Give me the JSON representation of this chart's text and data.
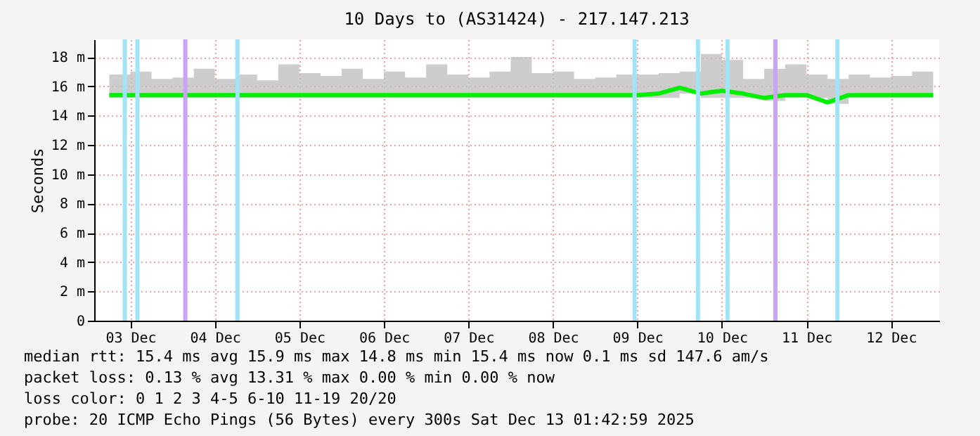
{
  "chart_data": {
    "type": "line",
    "title": "10 Days to (AS31424) - 217.147.213",
    "ylabel": "Seconds",
    "x": [
      "2025-12-03T06:00",
      "2025-12-03T12:00",
      "2025-12-03T18:00",
      "2025-12-04T00:00",
      "2025-12-04T06:00",
      "2025-12-04T12:00",
      "2025-12-04T18:00",
      "2025-12-05T00:00",
      "2025-12-05T06:00",
      "2025-12-05T12:00",
      "2025-12-05T18:00",
      "2025-12-06T00:00",
      "2025-12-06T06:00",
      "2025-12-06T12:00",
      "2025-12-06T18:00",
      "2025-12-07T00:00",
      "2025-12-07T06:00",
      "2025-12-07T12:00",
      "2025-12-07T18:00",
      "2025-12-08T00:00",
      "2025-12-08T06:00",
      "2025-12-08T12:00",
      "2025-12-08T18:00",
      "2025-12-09T00:00",
      "2025-12-09T06:00",
      "2025-12-09T12:00",
      "2025-12-09T18:00",
      "2025-12-10T00:00",
      "2025-12-10T06:00",
      "2025-12-10T12:00",
      "2025-12-10T18:00",
      "2025-12-11T00:00",
      "2025-12-11T06:00",
      "2025-12-11T12:00",
      "2025-12-11T18:00",
      "2025-12-12T00:00",
      "2025-12-12T06:00",
      "2025-12-12T12:00",
      "2025-12-12T18:00",
      "2025-12-13T00:00"
    ],
    "series": [
      {
        "color": "#00ee00",
        "values": [
          15.4,
          15.4,
          15.4,
          15.4,
          15.4,
          15.4,
          15.4,
          15.4,
          15.4,
          15.4,
          15.4,
          15.4,
          15.4,
          15.4,
          15.4,
          15.4,
          15.4,
          15.4,
          15.4,
          15.4,
          15.4,
          15.4,
          15.4,
          15.4,
          15.4,
          15.4,
          15.5,
          15.9,
          15.5,
          15.7,
          15.5,
          15.2,
          15.4,
          15.4,
          14.9,
          15.4,
          15.4,
          15.4,
          15.4,
          15.4
        ],
        "lower": [
          15.2,
          15.2,
          15.2,
          15.2,
          15.2,
          15.2,
          15.2,
          15.2,
          15.2,
          15.2,
          15.2,
          15.2,
          15.2,
          15.2,
          15.2,
          15.2,
          15.2,
          15.2,
          15.2,
          15.2,
          15.2,
          15.2,
          15.2,
          15.2,
          15.2,
          15.2,
          15.2,
          15.5,
          15.2,
          15.2,
          15.2,
          15.0,
          15.2,
          15.2,
          14.8,
          15.2,
          15.2,
          15.2,
          15.2,
          15.2
        ],
        "upper": [
          16.8,
          17.0,
          16.5,
          16.6,
          17.2,
          16.5,
          16.8,
          16.4,
          17.5,
          16.9,
          16.7,
          17.2,
          16.5,
          17.0,
          16.6,
          17.5,
          16.8,
          16.6,
          17.0,
          18.0,
          16.9,
          17.0,
          16.5,
          16.6,
          16.8,
          16.8,
          16.9,
          17.0,
          18.2,
          17.8,
          16.5,
          17.2,
          17.5,
          16.8,
          16.5,
          16.8,
          16.6,
          16.7,
          17.0,
          17.0
        ]
      }
    ],
    "xlim": [
      "2025-12-03T01:43",
      "2025-12-13T01:43"
    ],
    "xticks": [
      {
        "value": "2025-12-03T12:00",
        "label": "03 Dec"
      },
      {
        "value": "2025-12-04T12:00",
        "label": "04 Dec"
      },
      {
        "value": "2025-12-05T12:00",
        "label": "05 Dec"
      },
      {
        "value": "2025-12-06T12:00",
        "label": "06 Dec"
      },
      {
        "value": "2025-12-07T12:00",
        "label": "07 Dec"
      },
      {
        "value": "2025-12-08T12:00",
        "label": "08 Dec"
      },
      {
        "value": "2025-12-09T12:00",
        "label": "09 Dec"
      },
      {
        "value": "2025-12-10T12:00",
        "label": "10 Dec"
      },
      {
        "value": "2025-12-11T12:00",
        "label": "11 Dec"
      },
      {
        "value": "2025-12-12T12:00",
        "label": "12 Dec"
      }
    ],
    "ylim": [
      0,
      19.2
    ],
    "yticks": [
      0,
      {
        "value": 2,
        "label": "2 m"
      },
      {
        "value": 4,
        "label": "4 m"
      },
      {
        "value": 6,
        "label": "6 m"
      },
      {
        "value": 8,
        "label": "8 m"
      },
      {
        "value": 10,
        "label": "10 m"
      },
      {
        "value": 12,
        "label": "12 m"
      },
      {
        "value": 14,
        "label": "14 m"
      },
      {
        "value": 16,
        "label": "16 m"
      },
      {
        "value": 18,
        "label": "18 m"
      }
    ],
    "grid": true,
    "ref_lines": [
      {
        "axis": "x",
        "value": "2025-12-03T10:24",
        "color": "#a3e3f8"
      },
      {
        "axis": "x",
        "value": "2025-12-03T14:00",
        "color": "#a3e3f8"
      },
      {
        "axis": "x",
        "value": "2025-12-04T03:36",
        "color": "#c8a4f2"
      },
      {
        "axis": "x",
        "value": "2025-12-04T18:24",
        "color": "#a3e3f8"
      },
      {
        "axis": "x",
        "value": "2025-12-09T11:12",
        "color": "#a3e3f8"
      },
      {
        "axis": "x",
        "value": "2025-12-10T05:12",
        "color": "#a3e3f8"
      },
      {
        "axis": "x",
        "value": "2025-12-10T13:36",
        "color": "#a3e3f8"
      },
      {
        "axis": "x",
        "value": "2025-12-11T03:12",
        "color": "#c8a4f2"
      },
      {
        "axis": "x",
        "value": "2025-12-11T20:48",
        "color": "#a3e3f8"
      }
    ],
    "annotations": [
      "median rtt:  15.4 ms avg  15.9 ms max  14.8 ms min  15.4 ms now  0.1 ms sd  147.6   am/s",
      "packet loss: 0.13 % avg  13.31 % max  0.00 % min  0.00 % now",
      "loss color:  0  1  2  3  4-5  6-10  11-19  20/20",
      "probe:       20 ICMP Echo Pings (56 Bytes) every 300s                  Sat Dec 13 01:42:59 2025"
    ]
  }
}
